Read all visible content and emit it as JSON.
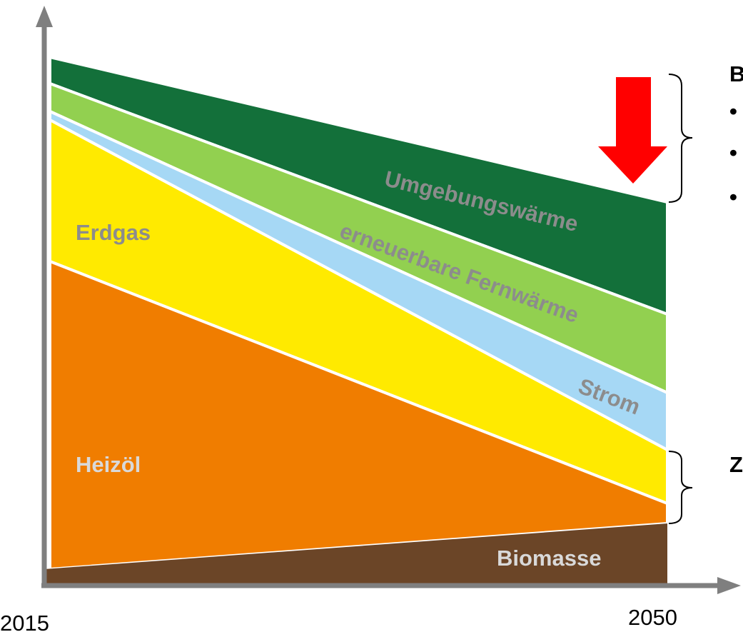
{
  "labels": {
    "umgebung": "Umgebungswärme",
    "fernwaerme": "erneuerbare Fernwärme",
    "strom": "Strom",
    "erdgas": "Erdgas",
    "heizoel": "Heizöl",
    "biomasse": "Biomasse"
  },
  "years": {
    "start": "2015",
    "end": "2050"
  },
  "side_text": {
    "heading_1": "B",
    "bullets": [
      "•",
      "•",
      "•"
    ],
    "heading_2": "Z"
  }
}
